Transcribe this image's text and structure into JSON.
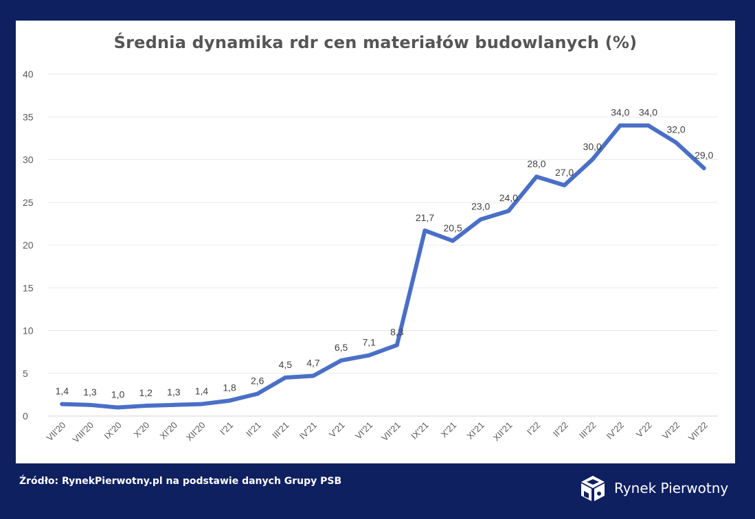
{
  "chart_data": {
    "type": "line",
    "title": "Średnia dynamika rdr cen materiałów budowlanych (%)",
    "categories": [
      "VII'20",
      "VIII'20",
      "IX'20",
      "X'20",
      "XI'20",
      "XII'20",
      "I'21",
      "II'21",
      "III'21",
      "IV'21",
      "V'21",
      "VI'21",
      "VII'21",
      "IX'21",
      "X'21",
      "XI'21",
      "XII'21",
      "I'22",
      "II'22",
      "III'22",
      "IV'22",
      "V'22",
      "VI'22",
      "VII'22"
    ],
    "series": [
      {
        "values": [
          1.4,
          1.3,
          1.0,
          1.2,
          1.3,
          1.4,
          1.8,
          2.6,
          4.5,
          4.7,
          6.5,
          7.1,
          8.3,
          21.7,
          20.5,
          23.0,
          24.0,
          28.0,
          27.0,
          30.0,
          34.0,
          34.0,
          32.0,
          29.0
        ],
        "labels": [
          "1,4",
          "1,3",
          "1,0",
          "1,2",
          "1,3",
          "1,4",
          "1,8",
          "2,6",
          "4,5",
          "4,7",
          "6,5",
          "7,1",
          "8,3",
          "21,7",
          "20,5",
          "23,0",
          "24,0",
          "28,0",
          "27,0",
          "30,0",
          "34,0",
          "34,0",
          "32,0",
          "29,0"
        ],
        "color": "#4a6fc7"
      }
    ],
    "ylim": [
      0,
      40
    ],
    "yticks": [
      "0",
      "5",
      "10",
      "15",
      "20",
      "25",
      "30",
      "35",
      "40"
    ],
    "xlabel": "",
    "ylabel": "",
    "grid": true
  },
  "footer": {
    "source": "Źródło: RynekPierwotny.pl na podstawie danych Grupy PSB",
    "brand": "Rynek Pierwotny",
    "brand_logo": "cube-logo-icon"
  }
}
